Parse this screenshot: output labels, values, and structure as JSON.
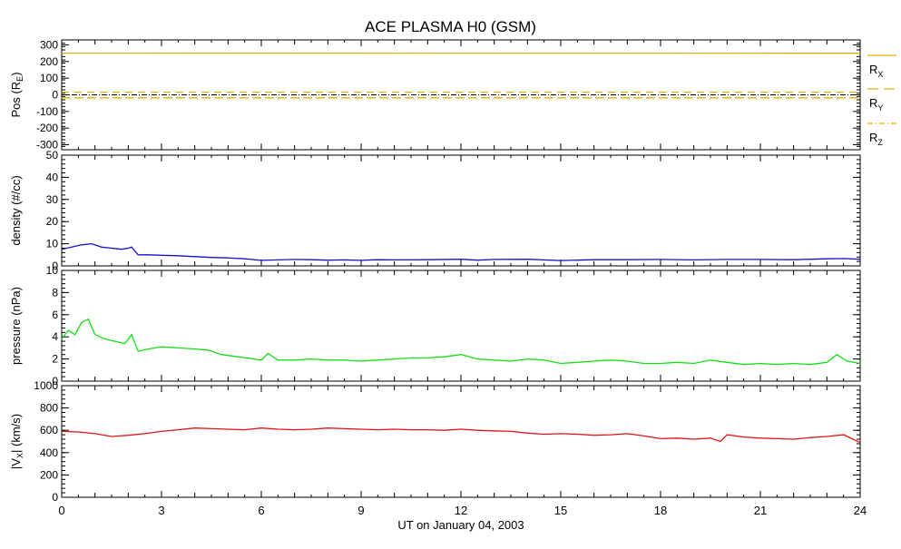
{
  "chart_data": {
    "title": "ACE PLASMA H0 (GSM)",
    "type": "line",
    "xlabel": "UT on January 04, 2003",
    "xlim": [
      0,
      24
    ],
    "xticks": [
      0,
      3,
      6,
      9,
      12,
      15,
      18,
      21,
      24
    ],
    "panels": [
      {
        "id": "pos",
        "ylabel": "Pos (R",
        "ylabel_sub": "E",
        "ylabel_close": ")",
        "ylim": [
          -330,
          330
        ],
        "yticks": [
          -300,
          -200,
          -100,
          0,
          100,
          200,
          300
        ],
        "zero_line": true,
        "series": [
          {
            "name": "R",
            "sub": "X",
            "color": "#e8b000",
            "style": "solid",
            "x": [
              0,
              24
            ],
            "y": [
              251,
              250
            ]
          },
          {
            "name": "R",
            "sub": "Y",
            "color": "#e8b000",
            "style": "dashed",
            "x": [
              0,
              24
            ],
            "y": [
              16,
              16
            ]
          },
          {
            "name": "R",
            "sub": "Z",
            "color": "#e8b000",
            "style": "dashed",
            "x": [
              0,
              24
            ],
            "y": [
              -18,
              -18
            ]
          }
        ]
      },
      {
        "id": "density",
        "ylabel": "density (#/cc)",
        "ylim": [
          0,
          50
        ],
        "yticks": [
          0,
          10,
          20,
          30,
          40,
          50
        ],
        "series": [
          {
            "color": "#1414c8",
            "x": [
              0,
              0.3,
              0.6,
              0.9,
              1.2,
              1.5,
              1.8,
              2.0,
              2.1,
              2.3,
              2.6,
              3.0,
              3.5,
              4.0,
              4.5,
              5.0,
              5.5,
              6.0,
              6.5,
              7.0,
              7.5,
              8.0,
              8.5,
              9.0,
              9.5,
              10.0,
              11.0,
              12.0,
              12.5,
              13.0,
              14.0,
              15.0,
              16.0,
              17.0,
              18.0,
              19.0,
              20.0,
              21.0,
              22.0,
              23.0,
              23.5,
              24.0
            ],
            "y": [
              7.5,
              8.5,
              9.5,
              10,
              8.5,
              8,
              7.5,
              8,
              8.5,
              5,
              5,
              4.8,
              4.6,
              4.2,
              3.8,
              3.6,
              3.2,
              2.5,
              2.7,
              2.9,
              2.8,
              2.6,
              2.7,
              2.5,
              2.8,
              2.7,
              2.8,
              3.0,
              2.6,
              2.9,
              3.0,
              2.4,
              2.8,
              2.8,
              2.9,
              2.7,
              2.9,
              2.9,
              2.8,
              3.2,
              3.3,
              3.0
            ]
          }
        ]
      },
      {
        "id": "pressure",
        "ylabel": "pressure (nPa)",
        "ylim": [
          0,
          10
        ],
        "yticks": [
          0,
          2,
          4,
          6,
          8,
          10
        ],
        "series": [
          {
            "color": "#14e014",
            "x": [
              0,
              0.2,
              0.4,
              0.6,
              0.8,
              1.0,
              1.3,
              1.6,
              1.9,
              2.1,
              2.3,
              2.6,
              3.0,
              3.5,
              4.0,
              4.4,
              4.8,
              5.3,
              6.0,
              6.2,
              6.5,
              7.0,
              7.5,
              8.0,
              8.5,
              9.0,
              9.5,
              10.0,
              10.5,
              11.0,
              11.5,
              12.0,
              12.5,
              13.0,
              13.5,
              14.0,
              14.5,
              15.0,
              15.5,
              16.0,
              16.5,
              17.0,
              17.5,
              18.0,
              18.5,
              19.0,
              19.5,
              20.0,
              20.5,
              21.0,
              21.5,
              22.0,
              22.5,
              23.0,
              23.3,
              23.6,
              24.0
            ],
            "y": [
              3.8,
              4.6,
              4.2,
              5.3,
              5.6,
              4.2,
              3.8,
              3.6,
              3.4,
              4.2,
              2.7,
              2.9,
              3.1,
              3.0,
              2.9,
              2.8,
              2.4,
              2.2,
              1.9,
              2.5,
              1.9,
              1.9,
              2.0,
              1.9,
              1.9,
              1.8,
              1.9,
              2.0,
              2.1,
              2.1,
              2.2,
              2.4,
              2.0,
              1.9,
              1.8,
              2.0,
              1.9,
              1.6,
              1.7,
              1.8,
              1.9,
              1.8,
              1.6,
              1.6,
              1.7,
              1.6,
              1.9,
              1.7,
              1.5,
              1.6,
              1.5,
              1.6,
              1.5,
              1.7,
              2.4,
              1.8,
              1.6
            ]
          }
        ]
      },
      {
        "id": "vx",
        "ylabel": "|V",
        "ylabel_sub": "X",
        "ylabel_close": "| (km/s)",
        "ylim": [
          0,
          1000
        ],
        "yticks": [
          0,
          200,
          400,
          600,
          800,
          1000
        ],
        "series": [
          {
            "color": "#e01414",
            "x": [
              0,
              0.5,
              1.0,
              1.5,
              2.0,
              2.5,
              3.0,
              3.5,
              4.0,
              4.5,
              5.0,
              5.5,
              6.0,
              6.5,
              7.0,
              7.5,
              8.0,
              8.5,
              9.0,
              9.5,
              10.0,
              10.5,
              11.0,
              11.5,
              12.0,
              12.5,
              13.0,
              13.5,
              14.0,
              14.5,
              15.0,
              15.5,
              16.0,
              16.5,
              17.0,
              17.5,
              18.0,
              18.5,
              19.0,
              19.5,
              19.8,
              20.0,
              20.5,
              21.0,
              21.5,
              22.0,
              22.5,
              23.0,
              23.5,
              24.0
            ],
            "y": [
              590,
              585,
              570,
              545,
              555,
              570,
              590,
              605,
              620,
              615,
              610,
              605,
              620,
              610,
              605,
              610,
              620,
              615,
              610,
              605,
              610,
              605,
              605,
              600,
              610,
              600,
              595,
              590,
              575,
              565,
              570,
              565,
              555,
              560,
              570,
              550,
              525,
              530,
              520,
              530,
              500,
              560,
              540,
              530,
              525,
              520,
              535,
              545,
              560,
              490
            ]
          }
        ]
      }
    ]
  }
}
